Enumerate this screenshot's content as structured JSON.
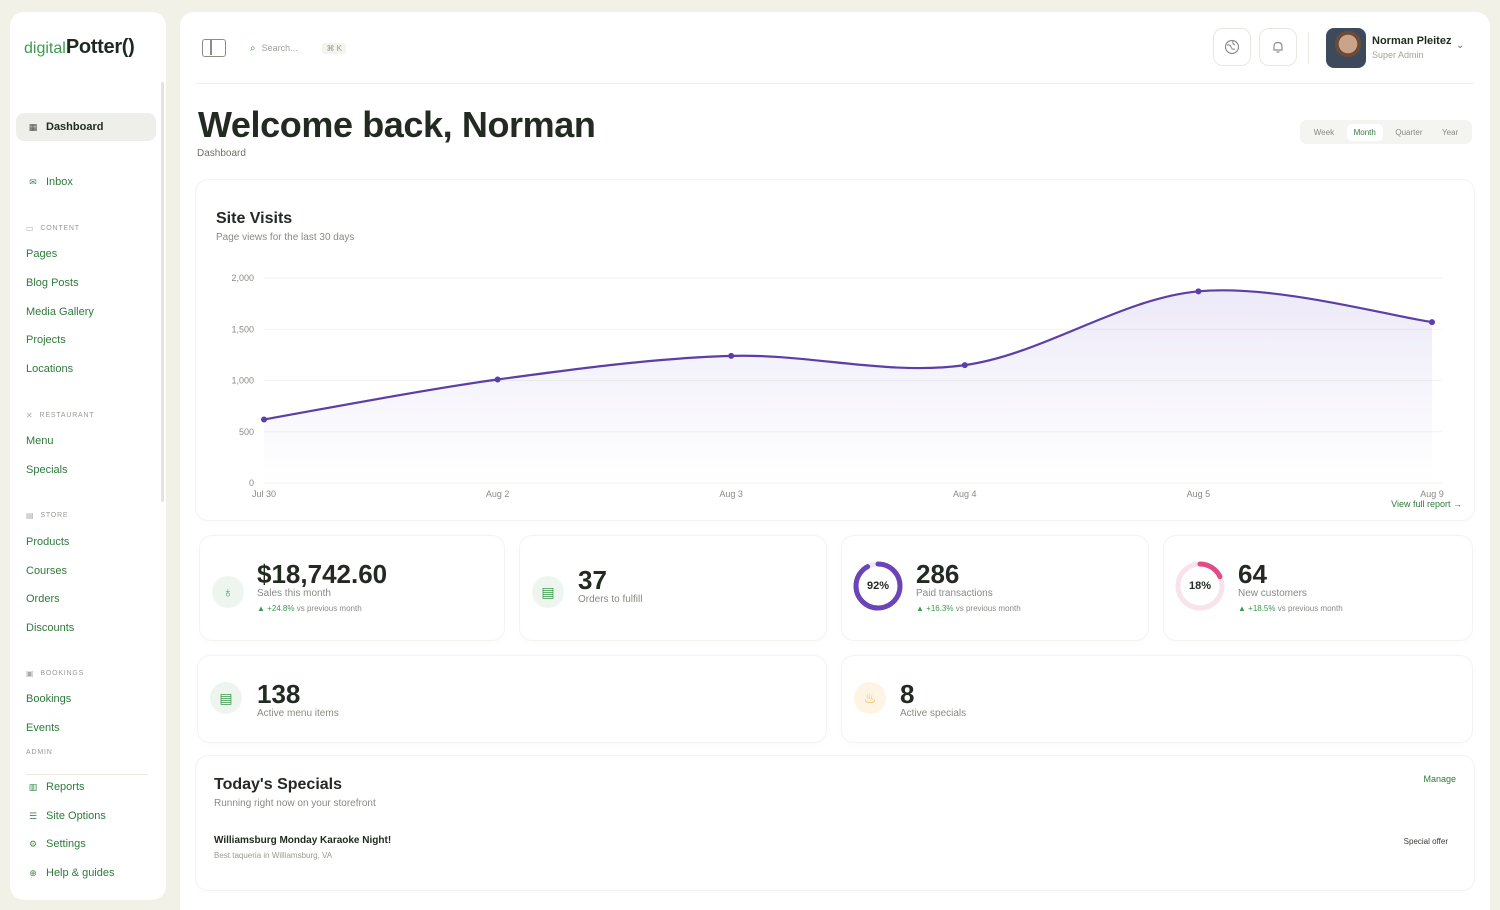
{
  "brand": {
    "prefix": "digital",
    "name": "Potter()"
  },
  "colors": {
    "accent": "#3d9a4e",
    "chart_line": "#5b3ea8",
    "ring_purple": "#6b45b8",
    "ring_pink": "#e04c86"
  },
  "sidebar": {
    "top_items": [
      {
        "label": "Dashboard",
        "icon": "grid-icon",
        "active": true
      },
      {
        "label": "Inbox",
        "icon": "mail-icon",
        "active": false
      }
    ],
    "sections": [
      {
        "title": "CONTENT",
        "icon": "folder-icon",
        "links": [
          "Pages",
          "Blog Posts",
          "Media Gallery",
          "Projects",
          "Locations"
        ]
      },
      {
        "title": "RESTAURANT",
        "icon": "utensils-icon",
        "links": [
          "Menu",
          "Specials"
        ]
      },
      {
        "title": "STORE",
        "icon": "store-icon",
        "links": [
          "Products",
          "Courses",
          "Orders",
          "Discounts"
        ]
      },
      {
        "title": "BOOKINGS",
        "icon": "calendar-icon",
        "links": [
          "Bookings",
          "Events"
        ]
      }
    ],
    "admin_title": "ADMIN",
    "admin_items": [
      {
        "label": "Reports",
        "icon": "bar-chart-icon"
      },
      {
        "label": "Site Options",
        "icon": "sliders-icon"
      },
      {
        "label": "Settings",
        "icon": "gear-icon"
      },
      {
        "label": "Help & guides",
        "icon": "help-circle-icon"
      }
    ]
  },
  "header": {
    "search_placeholder": "Search...",
    "search_shortcut": "⌘ K",
    "user": {
      "name": "Norman Pleitez",
      "role": "Super Admin"
    }
  },
  "page": {
    "title": "Welcome back, Norman",
    "breadcrumb": "Dashboard",
    "ranges": [
      "Week",
      "Month",
      "Quarter",
      "Year"
    ],
    "selected_range": "Month"
  },
  "chart_data": {
    "type": "line",
    "title": "Site Visits",
    "subtitle": "Page views for the last 30 days",
    "x": [
      "Jul 30",
      "Aug 2",
      "Aug 3",
      "Aug 4",
      "Aug 5",
      "Aug 9"
    ],
    "values": [
      620,
      1010,
      1240,
      1150,
      1870,
      1570
    ],
    "ylim": [
      0,
      2000
    ],
    "yticks": [
      "2,000",
      "1,500",
      "1,000",
      "500",
      "0"
    ],
    "area_fill": true,
    "view_report_label": "View full report →"
  },
  "stats": [
    {
      "value": "$18,742.60",
      "label": "Sales this month",
      "change": "+24.8%",
      "change_suffix": "vs previous month",
      "icon": "money-bag-icon"
    },
    {
      "value": "37",
      "label": "Orders to fulfill",
      "icon": "clipboard-icon"
    },
    {
      "value": "286",
      "label": "Paid transactions",
      "change": "+16.3%",
      "change_suffix": "vs previous month",
      "ring_label": "92%",
      "ring_fraction": 0.92
    },
    {
      "value": "64",
      "label": "New customers",
      "change": "+18.5%",
      "change_suffix": "vs previous month",
      "ring_label": "18%",
      "ring_fraction": 0.18
    },
    {
      "value": "138",
      "label": "Active menu items",
      "icon": "menu-book-icon"
    },
    {
      "value": "8",
      "label": "Active specials",
      "icon": "flame-icon"
    }
  ],
  "specials": {
    "title": "Today's Specials",
    "subtitle": "Running right now on your storefront",
    "manage_label": "Manage",
    "items": [
      {
        "title": "Williamsburg Monday Karaoke Night!",
        "location": "Best taqueria in Williamsburg, VA",
        "tag": "Special offer"
      }
    ]
  }
}
